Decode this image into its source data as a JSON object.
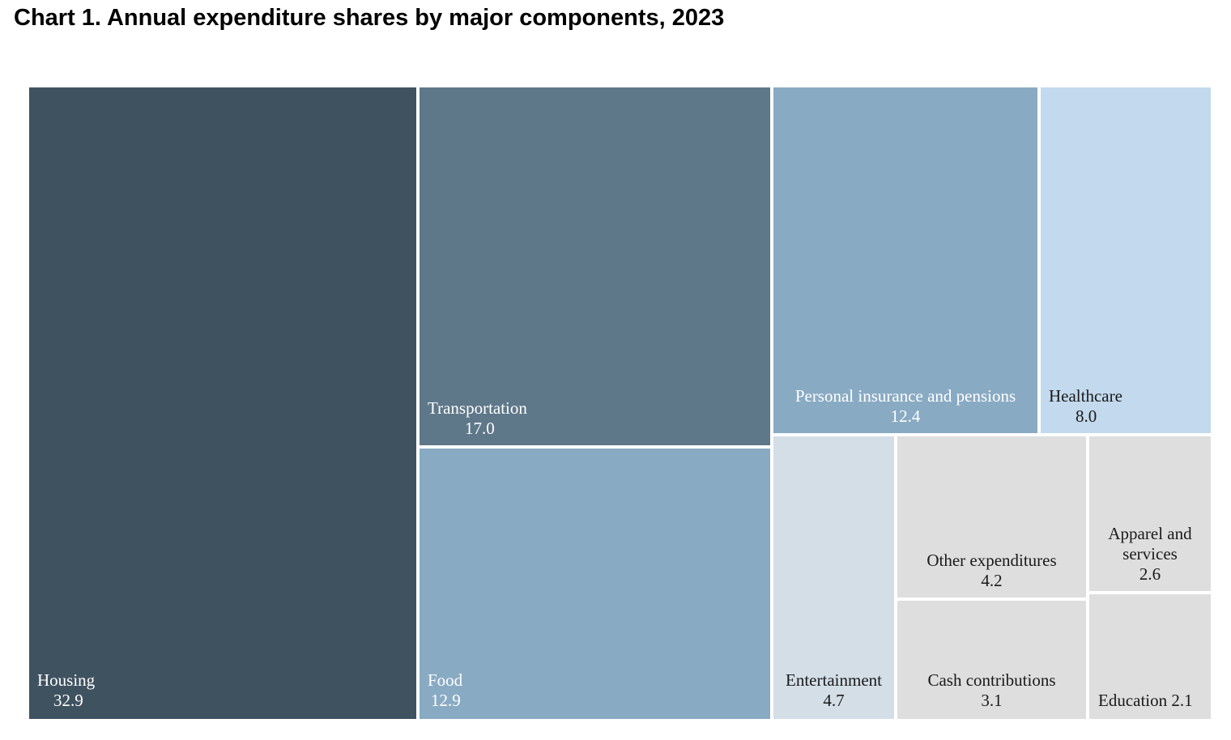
{
  "chart_data": {
    "type": "treemap",
    "title": "Chart 1. Annual expenditure shares by major components, 2023",
    "items": [
      {
        "label": "Housing",
        "value": 32.9,
        "value_text": "32.9",
        "color": "#3f5260",
        "text_color": "#ffffff"
      },
      {
        "label": "Transportation",
        "value": 17.0,
        "value_text": "17.0",
        "color": "#5e7789",
        "text_color": "#ffffff"
      },
      {
        "label": "Food",
        "value": 12.9,
        "value_text": "12.9",
        "color": "#89aac3",
        "text_color": "#ffffff"
      },
      {
        "label": "Personal insurance and pensions",
        "value": 12.4,
        "value_text": "12.4",
        "color": "#89aac3",
        "text_color": "#ffffff"
      },
      {
        "label": "Healthcare",
        "value": 8.0,
        "value_text": "8.0",
        "color": "#c3d9ed",
        "text_color": "#1a1a1a"
      },
      {
        "label": "Entertainment",
        "value": 4.7,
        "value_text": "4.7",
        "color": "#d3dee7",
        "text_color": "#1a1a1a"
      },
      {
        "label": "Other expenditures",
        "value": 4.2,
        "value_text": "4.2",
        "color": "#dedede",
        "text_color": "#1a1a1a"
      },
      {
        "label": "Cash contributions",
        "value": 3.1,
        "value_text": "3.1",
        "color": "#dedede",
        "text_color": "#1a1a1a"
      },
      {
        "label": "Apparel and services",
        "value": 2.6,
        "value_text": "2.6",
        "color": "#dedede",
        "text_color": "#1a1a1a"
      },
      {
        "label": "Education",
        "value": 2.1,
        "value_text": "2.1",
        "color": "#dedede",
        "text_color": "#1a1a1a"
      }
    ]
  }
}
